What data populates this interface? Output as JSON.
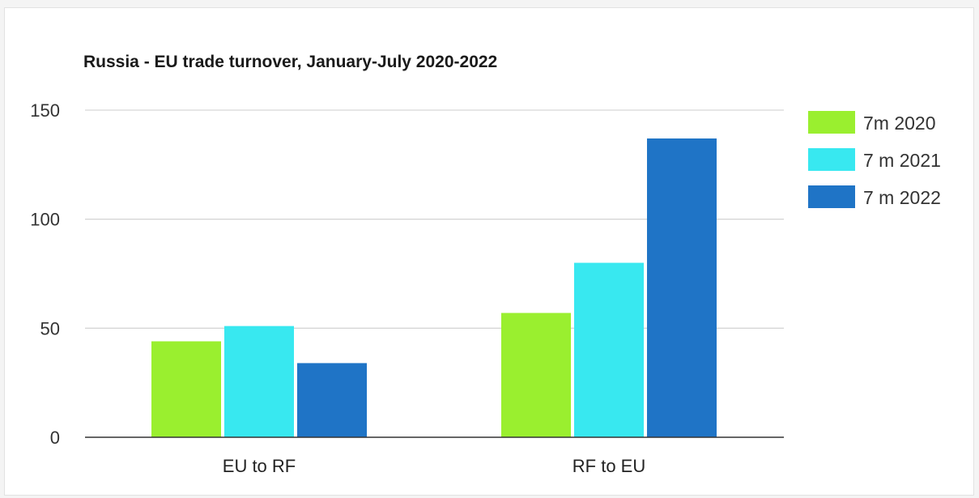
{
  "chart_data": {
    "type": "bar",
    "title": "Russia - EU trade turnover, January-July 2020-2022",
    "categories": [
      "EU to RF",
      "RF to EU"
    ],
    "series": [
      {
        "name": "7m 2020",
        "values": [
          44,
          57
        ],
        "color": "#9aef2f"
      },
      {
        "name": "7 m 2021",
        "values": [
          51,
          80
        ],
        "color": "#38e8f0"
      },
      {
        "name": "7 m 2022",
        "values": [
          34,
          137
        ],
        "color": "#1f74c6"
      }
    ],
    "ylim": [
      0,
      150
    ],
    "yticks": [
      0,
      50,
      100,
      150
    ],
    "grid": true,
    "legend": "right",
    "xlabel": "",
    "ylabel": ""
  }
}
